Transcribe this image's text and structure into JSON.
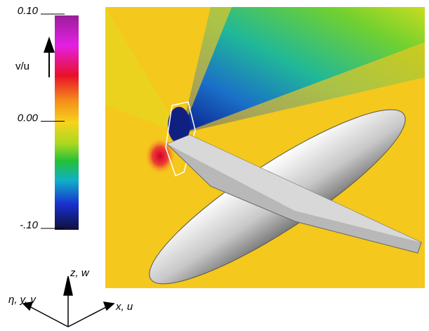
{
  "colorbar": {
    "label": "v/u",
    "ticks": [
      {
        "value": 0.1,
        "label": "0.10"
      },
      {
        "value": 0.0,
        "label": "0.00"
      },
      {
        "value": -0.1,
        "label": "-.10"
      }
    ]
  },
  "axes": {
    "vertical": "z, w",
    "left": "η, y, v",
    "right": "x, u"
  }
}
